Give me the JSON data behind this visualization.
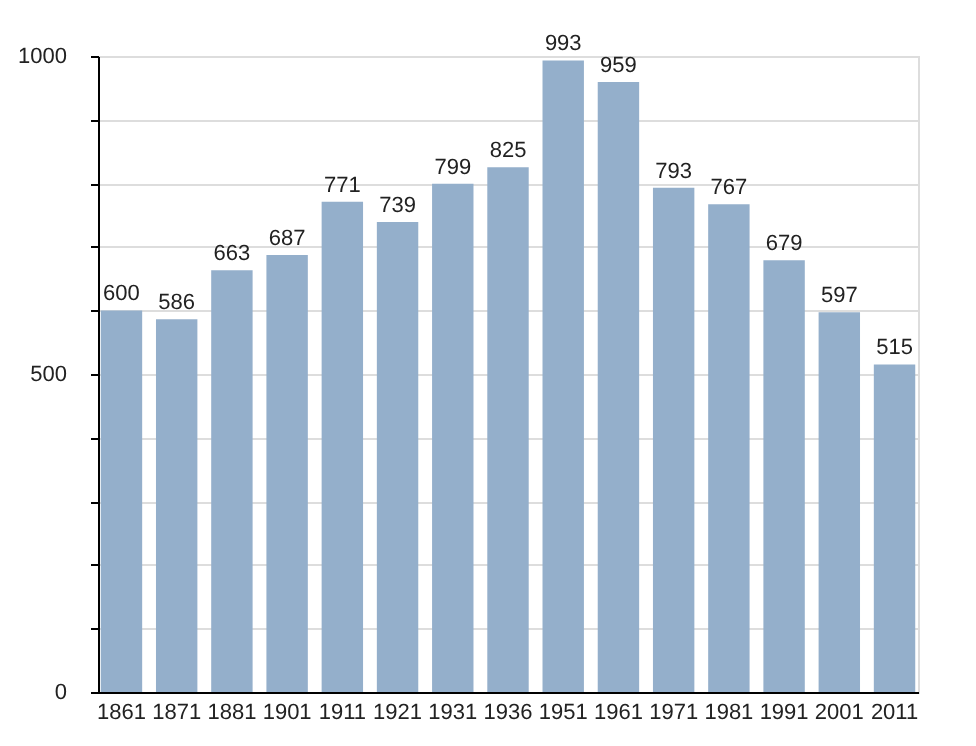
{
  "chart_data": {
    "type": "bar",
    "categories": [
      "1861",
      "1871",
      "1881",
      "1901",
      "1911",
      "1921",
      "1931",
      "1936",
      "1951",
      "1961",
      "1971",
      "1981",
      "1991",
      "2001",
      "2011"
    ],
    "values": [
      600,
      586,
      663,
      687,
      771,
      739,
      799,
      825,
      993,
      959,
      793,
      767,
      679,
      597,
      515
    ],
    "color": "#94afcb",
    "ylim": [
      0,
      1000
    ],
    "yticks": [
      0,
      {
        "value": 100,
        "label": null
      },
      {
        "value": 200,
        "label": null
      },
      {
        "value": 300,
        "label": null
      },
      {
        "value": 400,
        "label": null
      },
      500,
      {
        "value": 600,
        "label": null
      },
      {
        "value": 700,
        "label": null
      },
      {
        "value": 800,
        "label": null
      },
      {
        "value": 900,
        "label": null
      },
      1000
    ],
    "grid": "y",
    "data_labels": true
  }
}
